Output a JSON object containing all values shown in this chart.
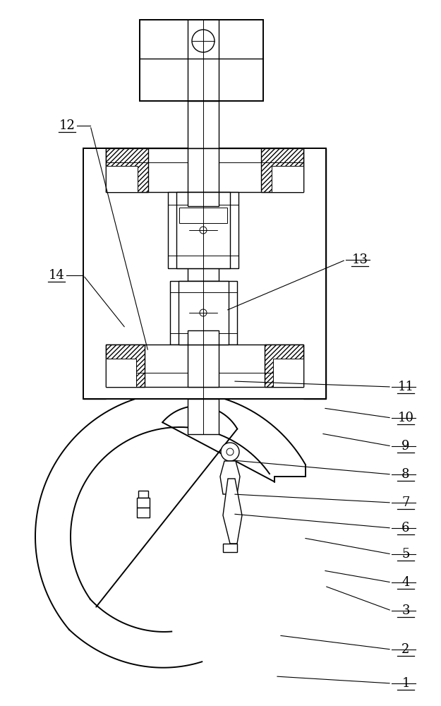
{
  "bg_color": "#ffffff",
  "line_color": "#000000",
  "label_color": "#000000",
  "figsize": [
    6.25,
    10.0
  ],
  "dpi": 100,
  "lw_main": 1.4,
  "lw_med": 1.0,
  "lw_thin": 0.7,
  "label_data": [
    [
      "1",
      575,
      968,
      555,
      968,
      390,
      958
    ],
    [
      "2",
      575,
      920,
      555,
      920,
      395,
      900
    ],
    [
      "3",
      575,
      865,
      555,
      865,
      460,
      830
    ],
    [
      "4",
      575,
      825,
      555,
      825,
      458,
      808
    ],
    [
      "5",
      575,
      785,
      555,
      785,
      430,
      762
    ],
    [
      "6",
      575,
      748,
      555,
      748,
      330,
      728
    ],
    [
      "7",
      575,
      712,
      555,
      712,
      330,
      700
    ],
    [
      "8",
      575,
      672,
      555,
      672,
      330,
      652
    ],
    [
      "9",
      575,
      632,
      555,
      632,
      455,
      614
    ],
    [
      "10",
      575,
      592,
      555,
      592,
      458,
      578
    ],
    [
      "11",
      575,
      548,
      555,
      548,
      330,
      540
    ],
    [
      "12",
      95,
      178,
      128,
      178,
      210,
      498
    ],
    [
      "13",
      510,
      368,
      490,
      368,
      320,
      440
    ],
    [
      "14",
      80,
      390,
      118,
      390,
      178,
      465
    ]
  ]
}
